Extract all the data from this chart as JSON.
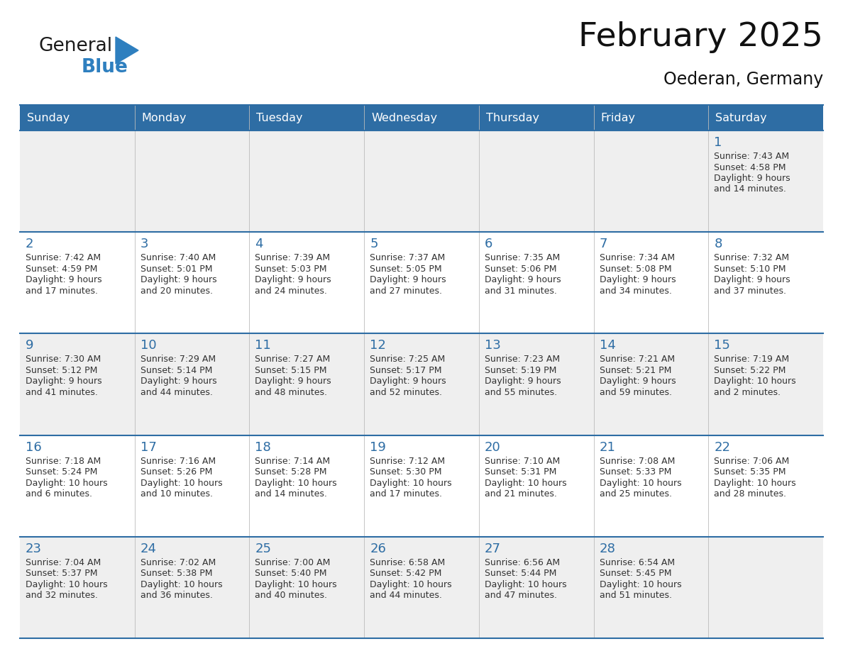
{
  "title": "February 2025",
  "subtitle": "Oederan, Germany",
  "header_bg": "#2E6DA4",
  "header_text_color": "#FFFFFF",
  "border_color": "#2E6DA4",
  "day_text_color": "#2E6DA4",
  "info_text_color": "#333333",
  "days_of_week": [
    "Sunday",
    "Monday",
    "Tuesday",
    "Wednesday",
    "Thursday",
    "Friday",
    "Saturday"
  ],
  "weeks": [
    [
      null,
      null,
      null,
      null,
      null,
      null,
      1
    ],
    [
      2,
      3,
      4,
      5,
      6,
      7,
      8
    ],
    [
      9,
      10,
      11,
      12,
      13,
      14,
      15
    ],
    [
      16,
      17,
      18,
      19,
      20,
      21,
      22
    ],
    [
      23,
      24,
      25,
      26,
      27,
      28,
      null
    ]
  ],
  "cell_data": {
    "1": {
      "sunrise": "7:43 AM",
      "sunset": "4:58 PM",
      "daylight_h": "9 hours",
      "daylight_m": "14 minutes."
    },
    "2": {
      "sunrise": "7:42 AM",
      "sunset": "4:59 PM",
      "daylight_h": "9 hours",
      "daylight_m": "17 minutes."
    },
    "3": {
      "sunrise": "7:40 AM",
      "sunset": "5:01 PM",
      "daylight_h": "9 hours",
      "daylight_m": "20 minutes."
    },
    "4": {
      "sunrise": "7:39 AM",
      "sunset": "5:03 PM",
      "daylight_h": "9 hours",
      "daylight_m": "24 minutes."
    },
    "5": {
      "sunrise": "7:37 AM",
      "sunset": "5:05 PM",
      "daylight_h": "9 hours",
      "daylight_m": "27 minutes."
    },
    "6": {
      "sunrise": "7:35 AM",
      "sunset": "5:06 PM",
      "daylight_h": "9 hours",
      "daylight_m": "31 minutes."
    },
    "7": {
      "sunrise": "7:34 AM",
      "sunset": "5:08 PM",
      "daylight_h": "9 hours",
      "daylight_m": "34 minutes."
    },
    "8": {
      "sunrise": "7:32 AM",
      "sunset": "5:10 PM",
      "daylight_h": "9 hours",
      "daylight_m": "37 minutes."
    },
    "9": {
      "sunrise": "7:30 AM",
      "sunset": "5:12 PM",
      "daylight_h": "9 hours",
      "daylight_m": "41 minutes."
    },
    "10": {
      "sunrise": "7:29 AM",
      "sunset": "5:14 PM",
      "daylight_h": "9 hours",
      "daylight_m": "44 minutes."
    },
    "11": {
      "sunrise": "7:27 AM",
      "sunset": "5:15 PM",
      "daylight_h": "9 hours",
      "daylight_m": "48 minutes."
    },
    "12": {
      "sunrise": "7:25 AM",
      "sunset": "5:17 PM",
      "daylight_h": "9 hours",
      "daylight_m": "52 minutes."
    },
    "13": {
      "sunrise": "7:23 AM",
      "sunset": "5:19 PM",
      "daylight_h": "9 hours",
      "daylight_m": "55 minutes."
    },
    "14": {
      "sunrise": "7:21 AM",
      "sunset": "5:21 PM",
      "daylight_h": "9 hours",
      "daylight_m": "59 minutes."
    },
    "15": {
      "sunrise": "7:19 AM",
      "sunset": "5:22 PM",
      "daylight_h": "10 hours",
      "daylight_m": "2 minutes."
    },
    "16": {
      "sunrise": "7:18 AM",
      "sunset": "5:24 PM",
      "daylight_h": "10 hours",
      "daylight_m": "6 minutes."
    },
    "17": {
      "sunrise": "7:16 AM",
      "sunset": "5:26 PM",
      "daylight_h": "10 hours",
      "daylight_m": "10 minutes."
    },
    "18": {
      "sunrise": "7:14 AM",
      "sunset": "5:28 PM",
      "daylight_h": "10 hours",
      "daylight_m": "14 minutes."
    },
    "19": {
      "sunrise": "7:12 AM",
      "sunset": "5:30 PM",
      "daylight_h": "10 hours",
      "daylight_m": "17 minutes."
    },
    "20": {
      "sunrise": "7:10 AM",
      "sunset": "5:31 PM",
      "daylight_h": "10 hours",
      "daylight_m": "21 minutes."
    },
    "21": {
      "sunrise": "7:08 AM",
      "sunset": "5:33 PM",
      "daylight_h": "10 hours",
      "daylight_m": "25 minutes."
    },
    "22": {
      "sunrise": "7:06 AM",
      "sunset": "5:35 PM",
      "daylight_h": "10 hours",
      "daylight_m": "28 minutes."
    },
    "23": {
      "sunrise": "7:04 AM",
      "sunset": "5:37 PM",
      "daylight_h": "10 hours",
      "daylight_m": "32 minutes."
    },
    "24": {
      "sunrise": "7:02 AM",
      "sunset": "5:38 PM",
      "daylight_h": "10 hours",
      "daylight_m": "36 minutes."
    },
    "25": {
      "sunrise": "7:00 AM",
      "sunset": "5:40 PM",
      "daylight_h": "10 hours",
      "daylight_m": "40 minutes."
    },
    "26": {
      "sunrise": "6:58 AM",
      "sunset": "5:42 PM",
      "daylight_h": "10 hours",
      "daylight_m": "44 minutes."
    },
    "27": {
      "sunrise": "6:56 AM",
      "sunset": "5:44 PM",
      "daylight_h": "10 hours",
      "daylight_m": "47 minutes."
    },
    "28": {
      "sunrise": "6:54 AM",
      "sunset": "5:45 PM",
      "daylight_h": "10 hours",
      "daylight_m": "51 minutes."
    }
  },
  "logo_general_color": "#1a1a1a",
  "logo_blue_color": "#2E7FBF",
  "logo_triangle_color": "#2E7FBF",
  "fig_width": 11.88,
  "fig_height": 9.18,
  "dpi": 100
}
